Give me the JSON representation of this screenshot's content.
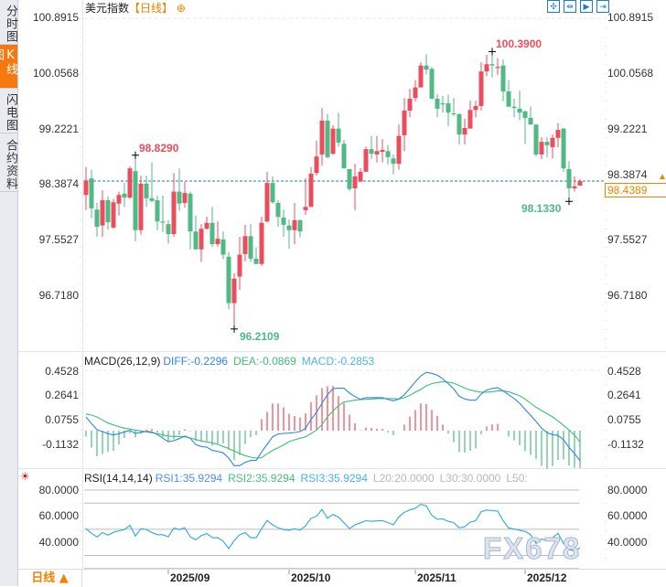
{
  "sidebar": {
    "tabs": [
      {
        "label": "分时图"
      },
      {
        "label": "K线图",
        "active": true
      },
      {
        "label": "闪电图"
      },
      {
        "label": "合约资料"
      }
    ]
  },
  "header": {
    "title": "美元指数",
    "period": "【日线】",
    "add_icon": "circle-plus-icon"
  },
  "toolbar": {
    "icons": [
      "crosshair-move-icon",
      "fit-range-icon",
      "play-forward-icon",
      "scroll-to-end-icon"
    ]
  },
  "main": {
    "y_ticks": [
      "100.8915",
      "100.0568",
      "99.2221",
      "98.3874",
      "97.5527",
      "96.7180"
    ],
    "current_price": "98.4389",
    "alert_icon": "up-arrow-icon",
    "annotations": [
      {
        "label": "98.8290",
        "kind": "high"
      },
      {
        "label": "100.3900",
        "kind": "high"
      },
      {
        "label": "96.2109",
        "kind": "low"
      },
      {
        "label": "98.1330",
        "kind": "low"
      }
    ]
  },
  "macd": {
    "title": "MACD(26,12,9)",
    "diff_label": "DIFF:-0.2296",
    "dea_label": "DEA:-0.0869",
    "macd_label": "MACD:-0.2853",
    "y_ticks": [
      "0.4528",
      "0.2641",
      "0.0755",
      "-0.1132"
    ]
  },
  "rsi": {
    "icon": "settings-sun-icon",
    "title": "RSI(14,14,14)",
    "rsi1_label": "RSI1:35.9294",
    "rsi2_label": "RSI2:35.9294",
    "rsi3_label": "RSI3:35.9294",
    "l20_label": "L20:20.0000",
    "l30_label": "L30:30.0000",
    "l50_label": "L50:",
    "y_ticks": [
      "80.0000",
      "60.0000",
      "40.0000"
    ]
  },
  "x_axis": {
    "dates": [
      "2025/09",
      "2025/10",
      "2025/11",
      "2025/12"
    ]
  },
  "period_button": {
    "label": "日线 ▲"
  },
  "watermark": "FX678",
  "colors": {
    "up": "#eb4d5c",
    "down": "#4fba84",
    "diff": "#2f86e6",
    "dea": "#3cbf7a",
    "macd_label": "#4ab4e6",
    "rsi": "#2aa7e0",
    "accent": "#f08300",
    "current_line": "#1e7bd0"
  },
  "chart_data": [
    {
      "type": "candlestick",
      "title": "美元指数",
      "ylim": [
        96.0,
        100.8915
      ],
      "up_color": "#eb4d5c",
      "down_color": "#4fba84",
      "ohlc": [
        [
          98.23,
          98.65,
          98.0,
          98.45
        ],
        [
          98.48,
          98.61,
          97.88,
          98.03
        ],
        [
          98.01,
          98.11,
          97.6,
          97.75
        ],
        [
          97.77,
          98.3,
          97.6,
          98.15
        ],
        [
          98.15,
          98.21,
          97.71,
          97.82
        ],
        [
          97.74,
          98.17,
          97.72,
          98.12
        ],
        [
          98.1,
          98.28,
          97.92,
          98.23
        ],
        [
          98.25,
          98.41,
          98.05,
          98.19
        ],
        [
          98.19,
          98.66,
          98.17,
          98.63
        ],
        [
          98.59,
          98.829,
          97.53,
          97.7
        ],
        [
          97.7,
          98.52,
          97.63,
          98.4
        ],
        [
          98.4,
          98.52,
          98.05,
          98.18
        ],
        [
          98.18,
          98.72,
          98.12,
          98.14
        ],
        [
          98.15,
          98.22,
          97.7,
          97.83
        ],
        [
          97.83,
          98.22,
          97.67,
          97.82
        ],
        [
          97.79,
          97.85,
          97.5,
          97.64
        ],
        [
          97.64,
          98.56,
          97.6,
          98.28
        ],
        [
          98.28,
          98.63,
          97.99,
          98.1
        ],
        [
          98.11,
          98.43,
          98.04,
          98.26
        ],
        [
          98.25,
          98.28,
          97.41,
          97.68
        ],
        [
          97.68,
          97.92,
          97.41,
          97.41
        ],
        [
          97.41,
          97.79,
          97.22,
          97.72
        ],
        [
          97.72,
          97.9,
          97.71,
          97.81
        ],
        [
          97.81,
          98.05,
          97.45,
          97.49
        ],
        [
          97.49,
          97.83,
          97.45,
          97.57
        ],
        [
          97.56,
          97.68,
          97.26,
          97.33
        ],
        [
          97.3,
          97.37,
          96.51,
          96.6
        ],
        [
          96.6,
          97.05,
          96.2109,
          96.97
        ],
        [
          97.0,
          97.6,
          96.8,
          97.33
        ],
        [
          97.34,
          97.78,
          97.23,
          97.61
        ],
        [
          97.61,
          97.79,
          97.22,
          97.27
        ],
        [
          97.27,
          97.44,
          97.19,
          97.19
        ],
        [
          97.19,
          97.9,
          97.16,
          97.81
        ],
        [
          97.83,
          98.58,
          97.82,
          98.41
        ],
        [
          98.41,
          98.51,
          98.1,
          98.12
        ],
        [
          98.11,
          98.15,
          97.75,
          97.9
        ],
        [
          97.89,
          98.01,
          97.6,
          97.78
        ],
        [
          97.77,
          97.86,
          97.42,
          97.7
        ],
        [
          97.7,
          98.11,
          97.49,
          97.85
        ],
        [
          97.85,
          97.86,
          97.59,
          97.68
        ],
        [
          98.0,
          98.48,
          97.93,
          98.05
        ],
        [
          98.05,
          98.65,
          98.05,
          98.55
        ],
        [
          98.56,
          99.05,
          98.52,
          98.81
        ],
        [
          98.84,
          99.54,
          98.67,
          99.35
        ],
        [
          99.35,
          99.45,
          98.78,
          98.8
        ],
        [
          98.85,
          99.28,
          98.84,
          99.23
        ],
        [
          99.23,
          99.47,
          98.96,
          99.02
        ],
        [
          99.0,
          99.06,
          98.63,
          98.63
        ],
        [
          98.62,
          98.62,
          98.29,
          98.32
        ],
        [
          98.33,
          98.7,
          98.0,
          98.51
        ],
        [
          98.43,
          98.63,
          98.43,
          98.58
        ],
        [
          98.58,
          98.96,
          98.58,
          98.92
        ],
        [
          98.92,
          99.12,
          98.77,
          98.85
        ],
        [
          98.84,
          99.12,
          98.72,
          98.89
        ],
        [
          98.88,
          99.07,
          98.72,
          98.91
        ],
        [
          98.89,
          98.98,
          98.69,
          98.8
        ],
        [
          98.78,
          98.84,
          98.54,
          98.7
        ],
        [
          98.7,
          99.29,
          98.61,
          99.12
        ],
        [
          99.13,
          99.69,
          98.89,
          99.5
        ],
        [
          99.5,
          99.83,
          99.4,
          99.68
        ],
        [
          99.69,
          99.96,
          99.64,
          99.85
        ],
        [
          99.85,
          100.23,
          99.85,
          100.18
        ],
        [
          100.18,
          100.35,
          100.05,
          100.12
        ],
        [
          100.13,
          100.16,
          99.67,
          99.68
        ],
        [
          99.68,
          99.75,
          99.4,
          99.53
        ],
        [
          99.61,
          99.72,
          99.47,
          99.6
        ],
        [
          99.61,
          99.74,
          99.27,
          99.47
        ],
        [
          99.46,
          99.69,
          99.42,
          99.45
        ],
        [
          99.45,
          99.45,
          98.99,
          99.14
        ],
        [
          99.14,
          99.38,
          98.99,
          99.24
        ],
        [
          99.23,
          99.65,
          99.23,
          99.51
        ],
        [
          99.51,
          99.65,
          99.4,
          99.57
        ],
        [
          99.57,
          100.23,
          99.5,
          100.09
        ],
        [
          100.09,
          100.34,
          100.02,
          100.2
        ],
        [
          100.2,
          100.39,
          100.0,
          100.18
        ],
        [
          100.15,
          100.29,
          100.04,
          100.16
        ],
        [
          100.18,
          100.27,
          99.64,
          99.79
        ],
        [
          99.79,
          99.96,
          99.56,
          99.56
        ],
        [
          99.56,
          99.68,
          99.4,
          99.54
        ],
        [
          99.53,
          99.8,
          99.36,
          99.47
        ],
        [
          99.49,
          99.5,
          99.0,
          99.39
        ],
        [
          99.39,
          99.56,
          99.29,
          99.29
        ],
        [
          99.29,
          99.29,
          98.81,
          98.84
        ],
        [
          98.84,
          99.1,
          98.77,
          99.03
        ],
        [
          99.03,
          99.1,
          98.8,
          98.98
        ],
        [
          98.95,
          99.14,
          98.78,
          99.09
        ],
        [
          99.09,
          99.31,
          98.95,
          99.21
        ],
        [
          99.23,
          99.24,
          98.58,
          98.63
        ],
        [
          98.62,
          98.74,
          98.133,
          98.33
        ],
        [
          98.33,
          98.51,
          98.28,
          98.36
        ],
        [
          98.37,
          98.47,
          98.37,
          98.4389
        ]
      ]
    },
    {
      "type": "line",
      "title": "MACD(26,12,9)",
      "ylim": [
        -0.2853,
        0.4528
      ],
      "series": [
        {
          "name": "DIFF",
          "values": [
            0.105,
            0.054,
            0.007,
            -0.007,
            -0.023,
            -0.033,
            -0.023,
            -0.009,
            0.002,
            -0.021,
            -0.014,
            -0.005,
            -0.009,
            -0.03,
            -0.058,
            -0.084,
            -0.077,
            -0.061,
            -0.042,
            -0.058,
            -0.107,
            -0.121,
            -0.126,
            -0.151,
            -0.158,
            -0.17,
            -0.21,
            -0.268,
            -0.268,
            -0.242,
            -0.228,
            -0.228,
            -0.163,
            -0.105,
            -0.047,
            -0.026,
            -0.021,
            -0.019,
            -0.014,
            -0.007,
            0.019,
            0.086,
            0.14,
            0.21,
            0.275,
            0.322,
            0.324,
            0.324,
            0.287,
            0.261,
            0.24,
            0.252,
            0.252,
            0.252,
            0.252,
            0.238,
            0.228,
            0.242,
            0.275,
            0.324,
            0.373,
            0.419,
            0.445,
            0.438,
            0.424,
            0.396,
            0.359,
            0.319,
            0.263,
            0.242,
            0.233,
            0.233,
            0.28,
            0.31,
            0.322,
            0.329,
            0.303,
            0.275,
            0.245,
            0.21,
            0.163,
            0.117,
            0.07,
            0.019,
            -0.016,
            -0.03,
            -0.037,
            -0.07,
            -0.128,
            -0.175,
            -0.2296
          ]
        },
        {
          "name": "DEA",
          "values": [
            0.128,
            0.119,
            0.105,
            0.082,
            0.058,
            0.044,
            0.03,
            0.019,
            0.012,
            0.005,
            -0.002,
            -0.009,
            -0.016,
            -0.023,
            -0.033,
            -0.042,
            -0.044,
            -0.044,
            -0.047,
            -0.056,
            -0.068,
            -0.079,
            -0.086,
            -0.093,
            -0.105,
            -0.121,
            -0.137,
            -0.156,
            -0.175,
            -0.191,
            -0.203,
            -0.21,
            -0.207,
            -0.177,
            -0.151,
            -0.13,
            -0.11,
            -0.084,
            -0.07,
            -0.058,
            -0.047,
            -0.023,
            0.005,
            0.047,
            0.105,
            0.151,
            0.191,
            0.219,
            0.226,
            0.233,
            0.238,
            0.24,
            0.242,
            0.245,
            0.245,
            0.245,
            0.245,
            0.242,
            0.252,
            0.27,
            0.294,
            0.315,
            0.343,
            0.359,
            0.368,
            0.373,
            0.37,
            0.363,
            0.345,
            0.326,
            0.31,
            0.301,
            0.294,
            0.294,
            0.298,
            0.303,
            0.303,
            0.298,
            0.282,
            0.266,
            0.242,
            0.21,
            0.179,
            0.154,
            0.13,
            0.105,
            0.075,
            0.04,
            0.005,
            -0.033,
            -0.0869
          ]
        }
      ],
      "histogram": "MACD = 2 × (DIFF − DEA)"
    },
    {
      "type": "line",
      "title": "RSI(14,14,14)",
      "ylim": [
        20,
        80
      ],
      "reference_lines": [
        80,
        70,
        50,
        30,
        20
      ],
      "series": [
        {
          "name": "RSI1",
          "values": [
            50.5,
            47.0,
            44.1,
            47.5,
            45.5,
            47.7,
            48.9,
            49.8,
            53.0,
            44.8,
            50.5,
            49.8,
            47.5,
            45.9,
            45.9,
            44.3,
            50.9,
            49.8,
            51.1,
            44.3,
            42.0,
            45.2,
            46.8,
            43.6,
            43.6,
            40.9,
            35.2,
            41.4,
            45.9,
            47.5,
            43.6,
            43.6,
            50.5,
            56.8,
            53.4,
            51.1,
            49.8,
            49.3,
            50.5,
            49.3,
            52.7,
            58.4,
            60.0,
            65.2,
            58.4,
            61.4,
            59.3,
            55.0,
            50.5,
            53.4,
            55.0,
            56.6,
            56.1,
            56.4,
            56.6,
            55.2,
            53.4,
            59.5,
            63.0,
            64.8,
            66.1,
            69.1,
            68.0,
            60.7,
            57.7,
            58.0,
            56.1,
            55.2,
            51.1,
            52.0,
            55.5,
            56.6,
            63.4,
            64.8,
            64.3,
            63.9,
            56.6,
            50.9,
            50.2,
            49.3,
            48.4,
            45.9,
            39.1,
            42.5,
            41.4,
            43.6,
            47.0,
            39.1,
            34.5,
            33.4,
            35.9294
          ]
        }
      ]
    }
  ]
}
